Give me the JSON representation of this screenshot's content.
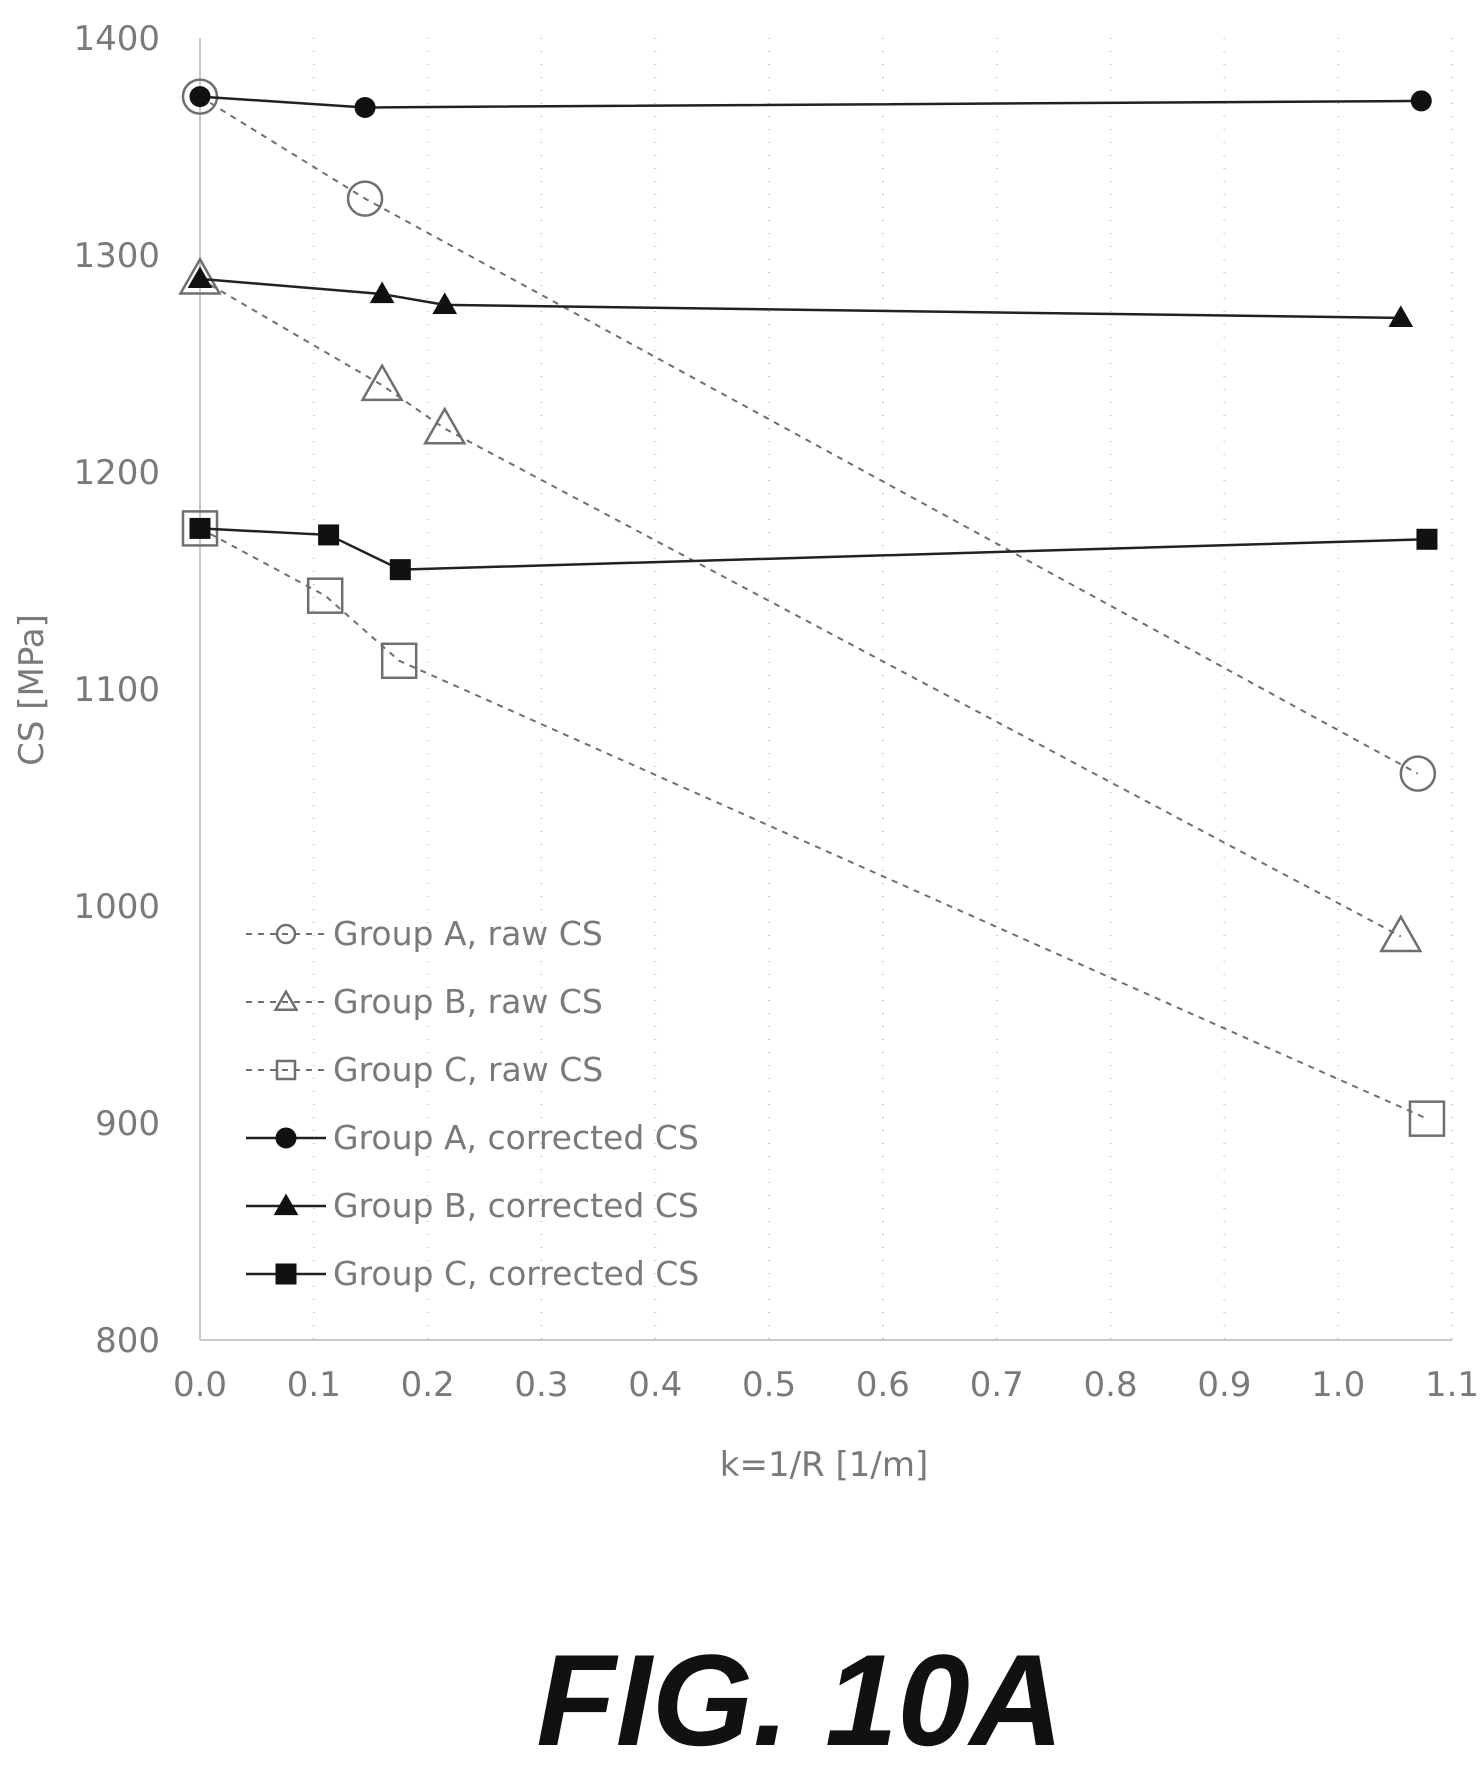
{
  "chart_data": {
    "type": "line",
    "title": "",
    "xlabel": "k=1/R [1/m]",
    "ylabel": "CS [MPa]",
    "xlim": [
      0.0,
      1.1
    ],
    "ylim": [
      800,
      1400
    ],
    "xticks": [
      "0.0",
      "0.1",
      "0.2",
      "0.3",
      "0.4",
      "0.5",
      "0.6",
      "0.7",
      "0.8",
      "0.9",
      "1.0",
      "1.1"
    ],
    "yticks": [
      "800",
      "900",
      "1000",
      "1100",
      "1200",
      "1300",
      "1400"
    ],
    "grid": "dotted vertical",
    "legend_position": "lower-left",
    "series": [
      {
        "name": "Group A, raw CS",
        "marker": "open-circle",
        "line": "dashed",
        "color": "#6f6f6f",
        "x": [
          0.0,
          0.145,
          1.07
        ],
        "y": [
          1373,
          1326,
          1061
        ]
      },
      {
        "name": "Group B, raw CS",
        "marker": "open-triangle",
        "line": "dashed",
        "color": "#6f6f6f",
        "x": [
          0.0,
          0.16,
          0.215,
          1.055
        ],
        "y": [
          1289,
          1240,
          1220,
          986
        ]
      },
      {
        "name": "Group C, raw CS",
        "marker": "open-square",
        "line": "dashed",
        "color": "#6f6f6f",
        "x": [
          0.0,
          0.11,
          0.175,
          1.078
        ],
        "y": [
          1174,
          1143,
          1113,
          902
        ]
      },
      {
        "name": "Group A, corrected CS",
        "marker": "filled-circle",
        "line": "solid",
        "color": "#111111",
        "x": [
          0.0,
          0.145,
          1.073
        ],
        "y": [
          1373,
          1368,
          1371
        ]
      },
      {
        "name": "Group B, corrected CS",
        "marker": "filled-triangle",
        "line": "solid",
        "color": "#111111",
        "x": [
          0.0,
          0.16,
          0.215,
          1.055
        ],
        "y": [
          1289,
          1282,
          1277,
          1271
        ]
      },
      {
        "name": "Group C, corrected CS",
        "marker": "filled-square",
        "line": "solid",
        "color": "#111111",
        "x": [
          0.0,
          0.113,
          0.176,
          1.078
        ],
        "y": [
          1174,
          1171,
          1155,
          1169
        ]
      }
    ]
  },
  "caption": "FIG. 10A"
}
